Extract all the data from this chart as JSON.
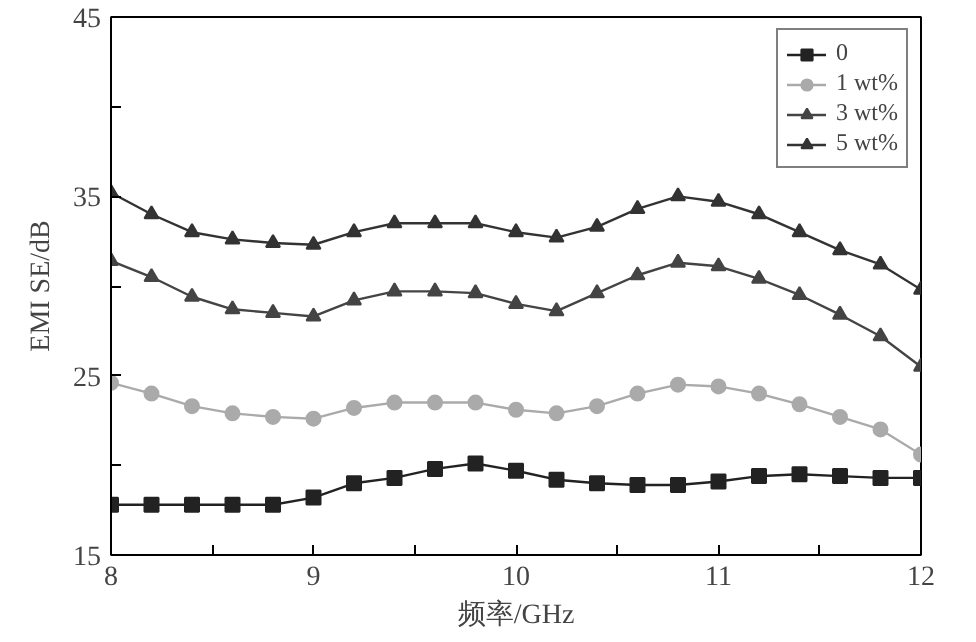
{
  "chart_data": {
    "type": "line",
    "xlabel": "频率/GHz",
    "ylabel": "EMI SE/dB",
    "x": [
      8,
      8.2,
      8.4,
      8.6,
      8.8,
      9,
      9.2,
      9.4,
      9.6,
      9.8,
      10,
      10.2,
      10.4,
      10.6,
      10.8,
      11,
      11.2,
      11.4,
      11.6,
      11.8,
      12
    ],
    "series": [
      {
        "name": "0",
        "color": "#222222",
        "marker": "square",
        "values": [
          17.8,
          17.8,
          17.8,
          17.8,
          17.8,
          18.2,
          19.0,
          19.3,
          19.8,
          20.1,
          19.7,
          19.2,
          19.0,
          18.9,
          18.9,
          19.1,
          19.4,
          19.5,
          19.4,
          19.3,
          19.3
        ]
      },
      {
        "name": "1 wt%",
        "color": "#aaaaaa",
        "marker": "circle",
        "values": [
          24.6,
          24.0,
          23.3,
          22.9,
          22.7,
          22.6,
          23.2,
          23.5,
          23.5,
          23.5,
          23.1,
          22.9,
          23.3,
          24.0,
          24.5,
          24.4,
          24.0,
          23.4,
          22.7,
          22.0,
          20.6
        ]
      },
      {
        "name": "3 wt%",
        "color": "#444444",
        "marker": "triangle",
        "values": [
          31.4,
          30.5,
          29.4,
          28.7,
          28.5,
          28.3,
          29.2,
          29.7,
          29.7,
          29.6,
          29.0,
          28.6,
          29.6,
          30.6,
          31.3,
          31.1,
          30.4,
          29.5,
          28.4,
          27.2,
          25.5
        ]
      },
      {
        "name": "5 wt%",
        "color": "#333333",
        "marker": "triangle",
        "values": [
          35.2,
          34.0,
          33.0,
          32.6,
          32.4,
          32.3,
          33.0,
          33.5,
          33.5,
          33.5,
          33.0,
          32.7,
          33.3,
          34.3,
          35.0,
          34.7,
          34.0,
          33.0,
          32.0,
          31.2,
          29.8
        ]
      }
    ],
    "xlim": [
      8,
      12
    ],
    "xticks": [
      8,
      {
        "value": 8.5,
        "label": null
      },
      9,
      {
        "value": 9.5,
        "label": null
      },
      10,
      {
        "value": 10.5,
        "label": null
      },
      11,
      {
        "value": 11.5,
        "label": null
      },
      12
    ],
    "ylim": [
      15,
      45
    ],
    "yticks": [
      15,
      {
        "value": 20,
        "label": null
      },
      25,
      {
        "value": 30,
        "label": null
      },
      35,
      {
        "value": 40,
        "label": null
      },
      45
    ],
    "grid": false,
    "legend": "top right",
    "line_style": "solid"
  }
}
